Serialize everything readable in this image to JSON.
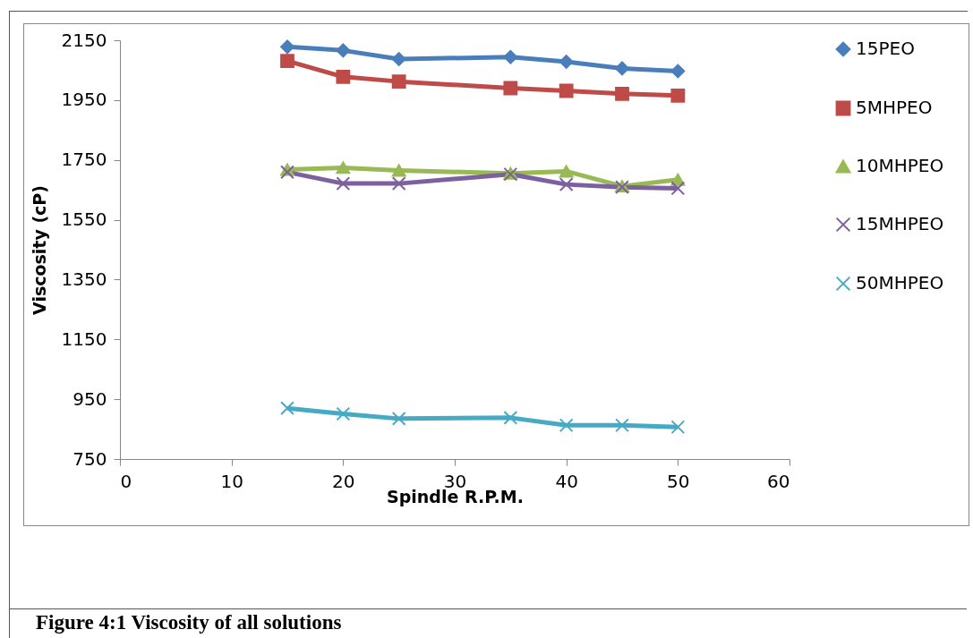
{
  "chart_data": {
    "type": "line",
    "xlabel": "Spindle R.P.M.",
    "ylabel": "Viscosity  (cP)",
    "annotations": [
      "Figure 4:1 Viscosity of all solutions"
    ],
    "x": [
      15,
      20,
      25,
      35,
      40,
      45,
      50
    ],
    "xlim": [
      0,
      60
    ],
    "xticks": [
      0,
      10,
      20,
      30,
      40,
      50,
      60
    ],
    "ylim": [
      750,
      2150
    ],
    "yticks": [
      750,
      950,
      1150,
      1350,
      1550,
      1750,
      1950,
      2150
    ],
    "grid": false,
    "legend": "right",
    "series": [
      {
        "name": "15PEO",
        "color": "#4a7ebb",
        "marker": "diamond",
        "values": [
          2128,
          2116,
          2087,
          2094,
          2078,
          2056,
          2047
        ]
      },
      {
        "name": "5MHPEO",
        "color": "#be4b48",
        "marker": "square",
        "values": [
          2081,
          2028,
          2012,
          1990,
          1981,
          1971,
          1965
        ]
      },
      {
        "name": "10MHPEO",
        "color": "#98b954",
        "marker": "triangle",
        "values": [
          1718,
          1724,
          1715,
          1705,
          1712,
          1662,
          1684
        ]
      },
      {
        "name": "15MHPEO",
        "color": "#7d60a0",
        "marker": "cross",
        "values": [
          1709,
          1671,
          1671,
          1702,
          1668,
          1659,
          1655
        ]
      },
      {
        "name": "50MHPEO",
        "color": "#46aac5",
        "marker": "cross",
        "values": [
          920,
          901,
          885,
          888,
          863,
          863,
          857
        ]
      }
    ]
  }
}
